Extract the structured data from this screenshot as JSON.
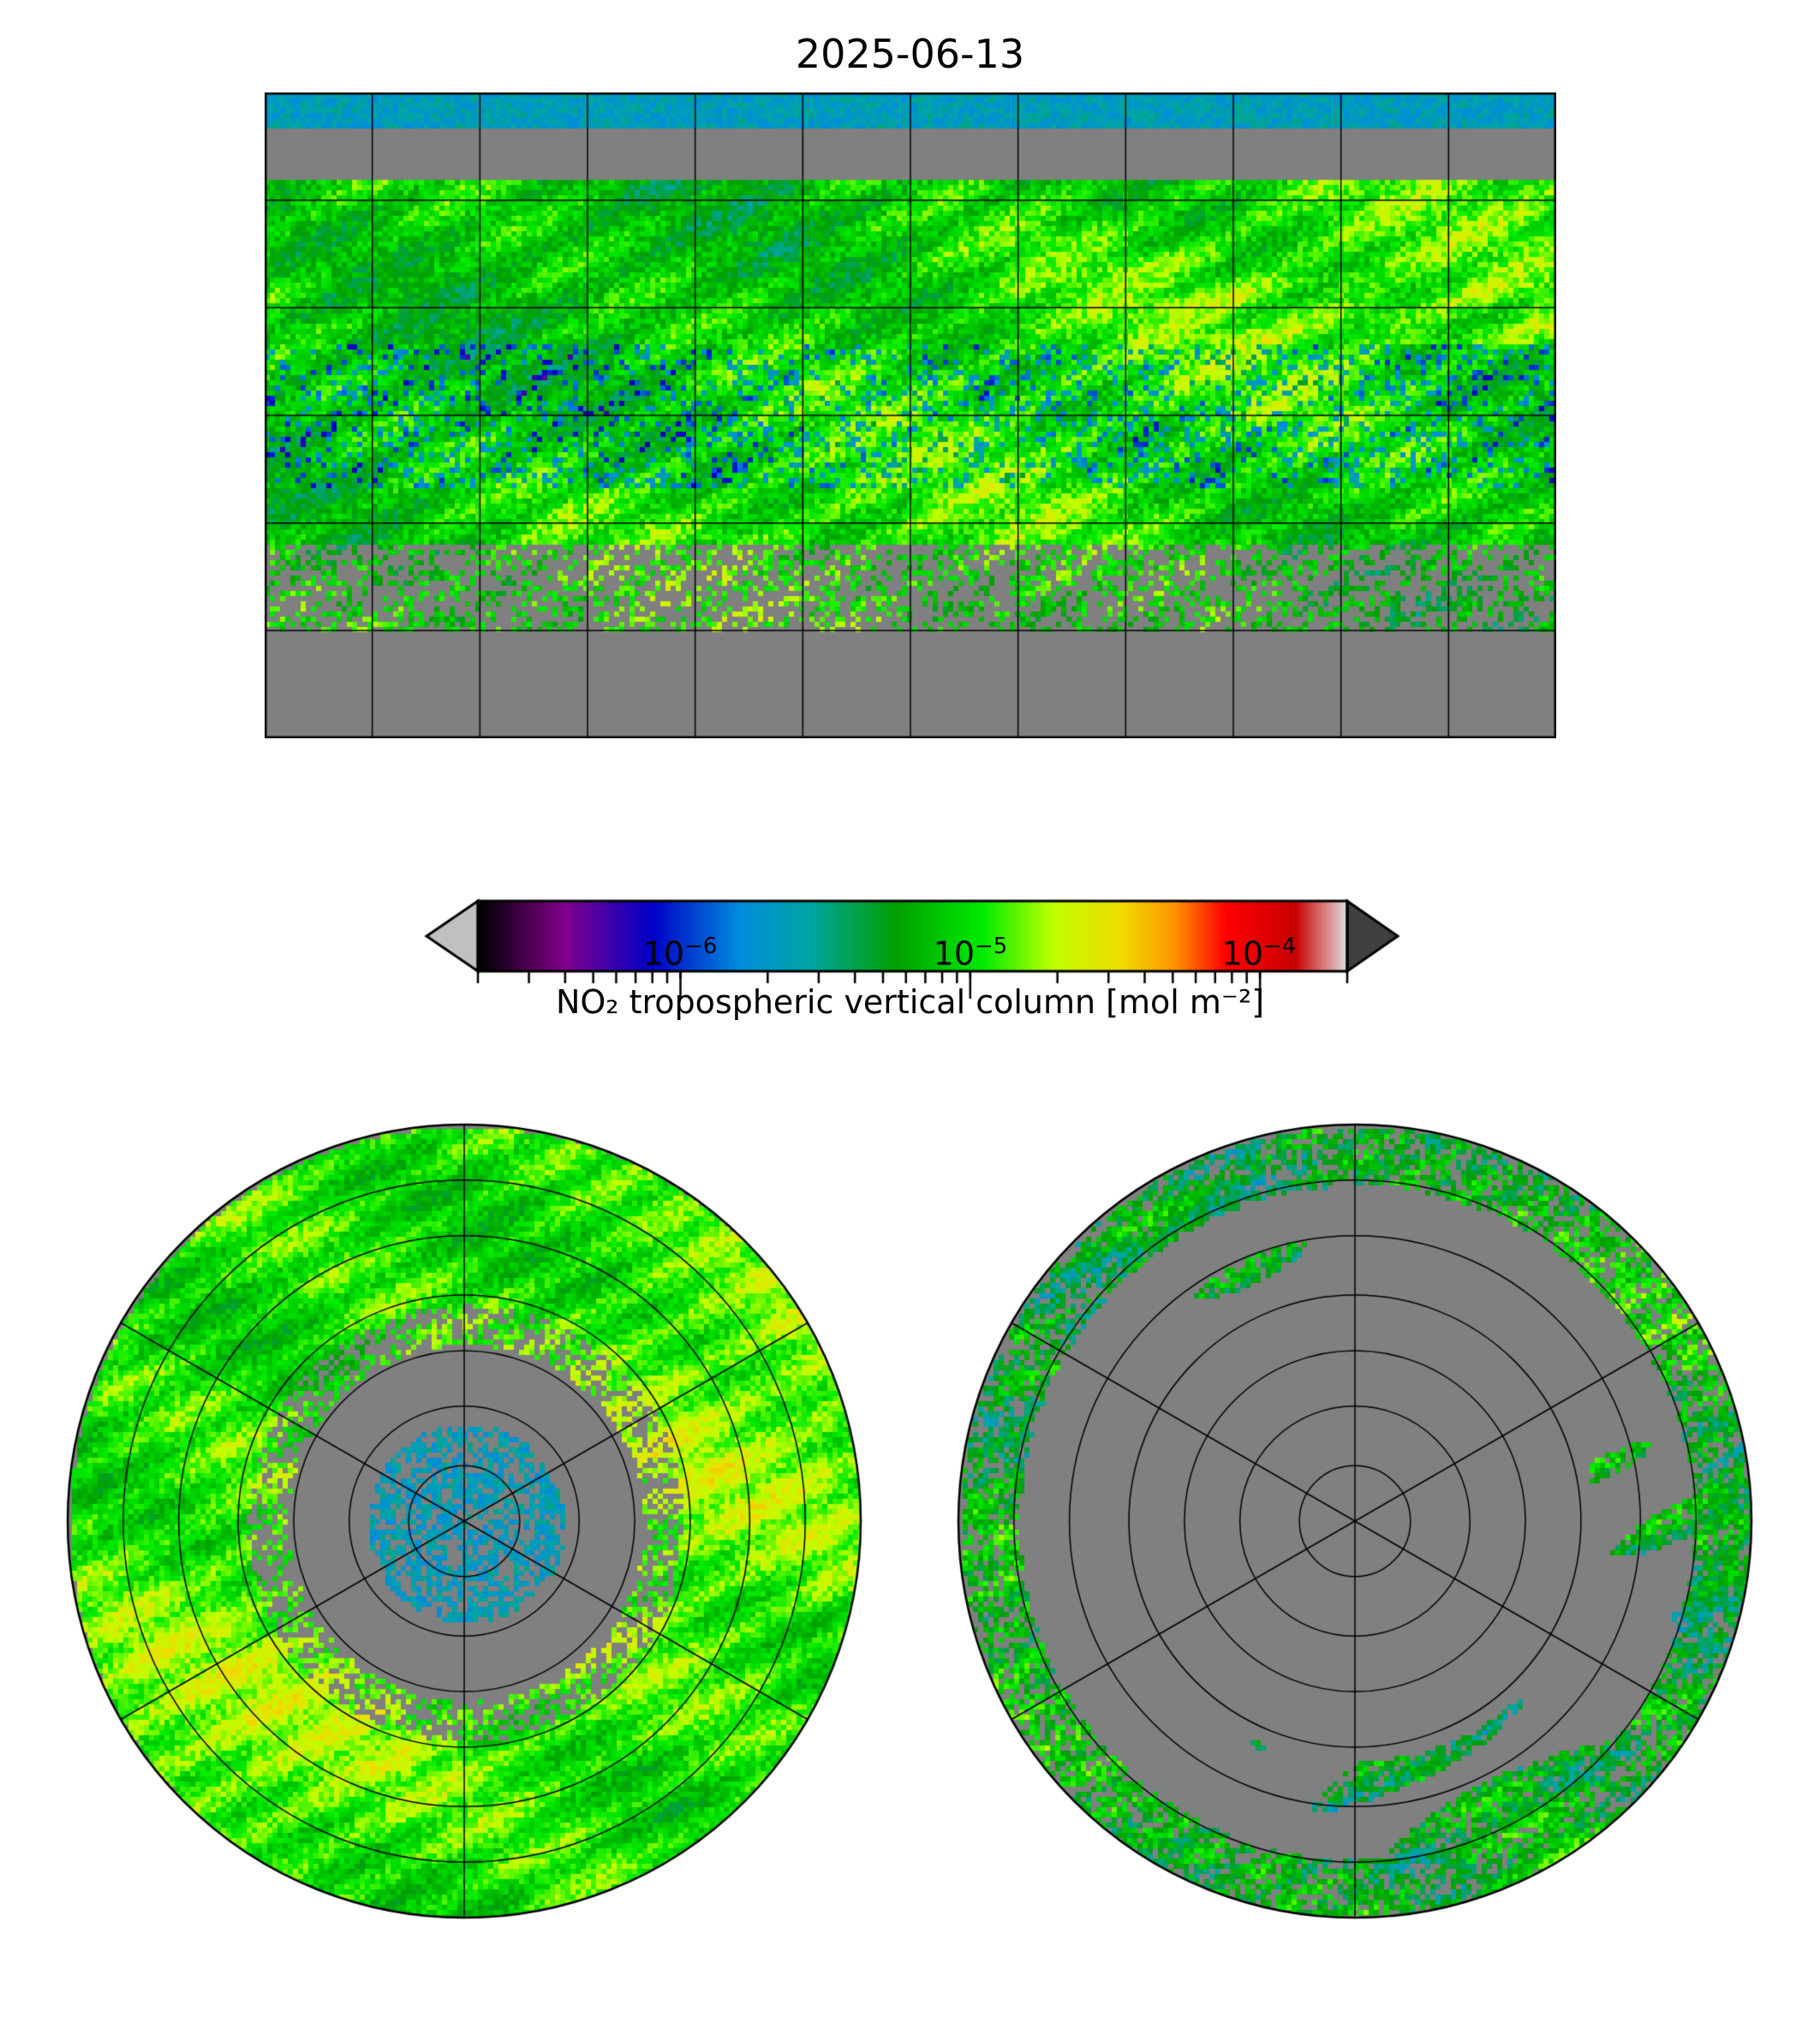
{
  "title": "2025-06-13",
  "colorbar": {
    "label": "NO₂ tropospheric vertical column [mol m⁻²]",
    "scale": "log",
    "vmin": 2e-07,
    "vmax": 0.0002,
    "extend": "both",
    "ticks": [
      {
        "value": 1e-06,
        "base": "10",
        "exp": "−6"
      },
      {
        "value": 1e-05,
        "base": "10",
        "exp": "−5"
      },
      {
        "value": 0.0001,
        "base": "10",
        "exp": "−4"
      }
    ],
    "under_color": "#c0c0c0",
    "over_color": "#404040",
    "nodata_color": "#808080"
  },
  "maps": [
    {
      "name": "global",
      "projection": "PlateCarree",
      "gridline_lon_step": 30,
      "gridline_lat_step": 30
    },
    {
      "name": "north-polar",
      "projection": "NorthPolarStereo"
    },
    {
      "name": "south-polar",
      "projection": "SouthPolarStereo"
    }
  ]
}
